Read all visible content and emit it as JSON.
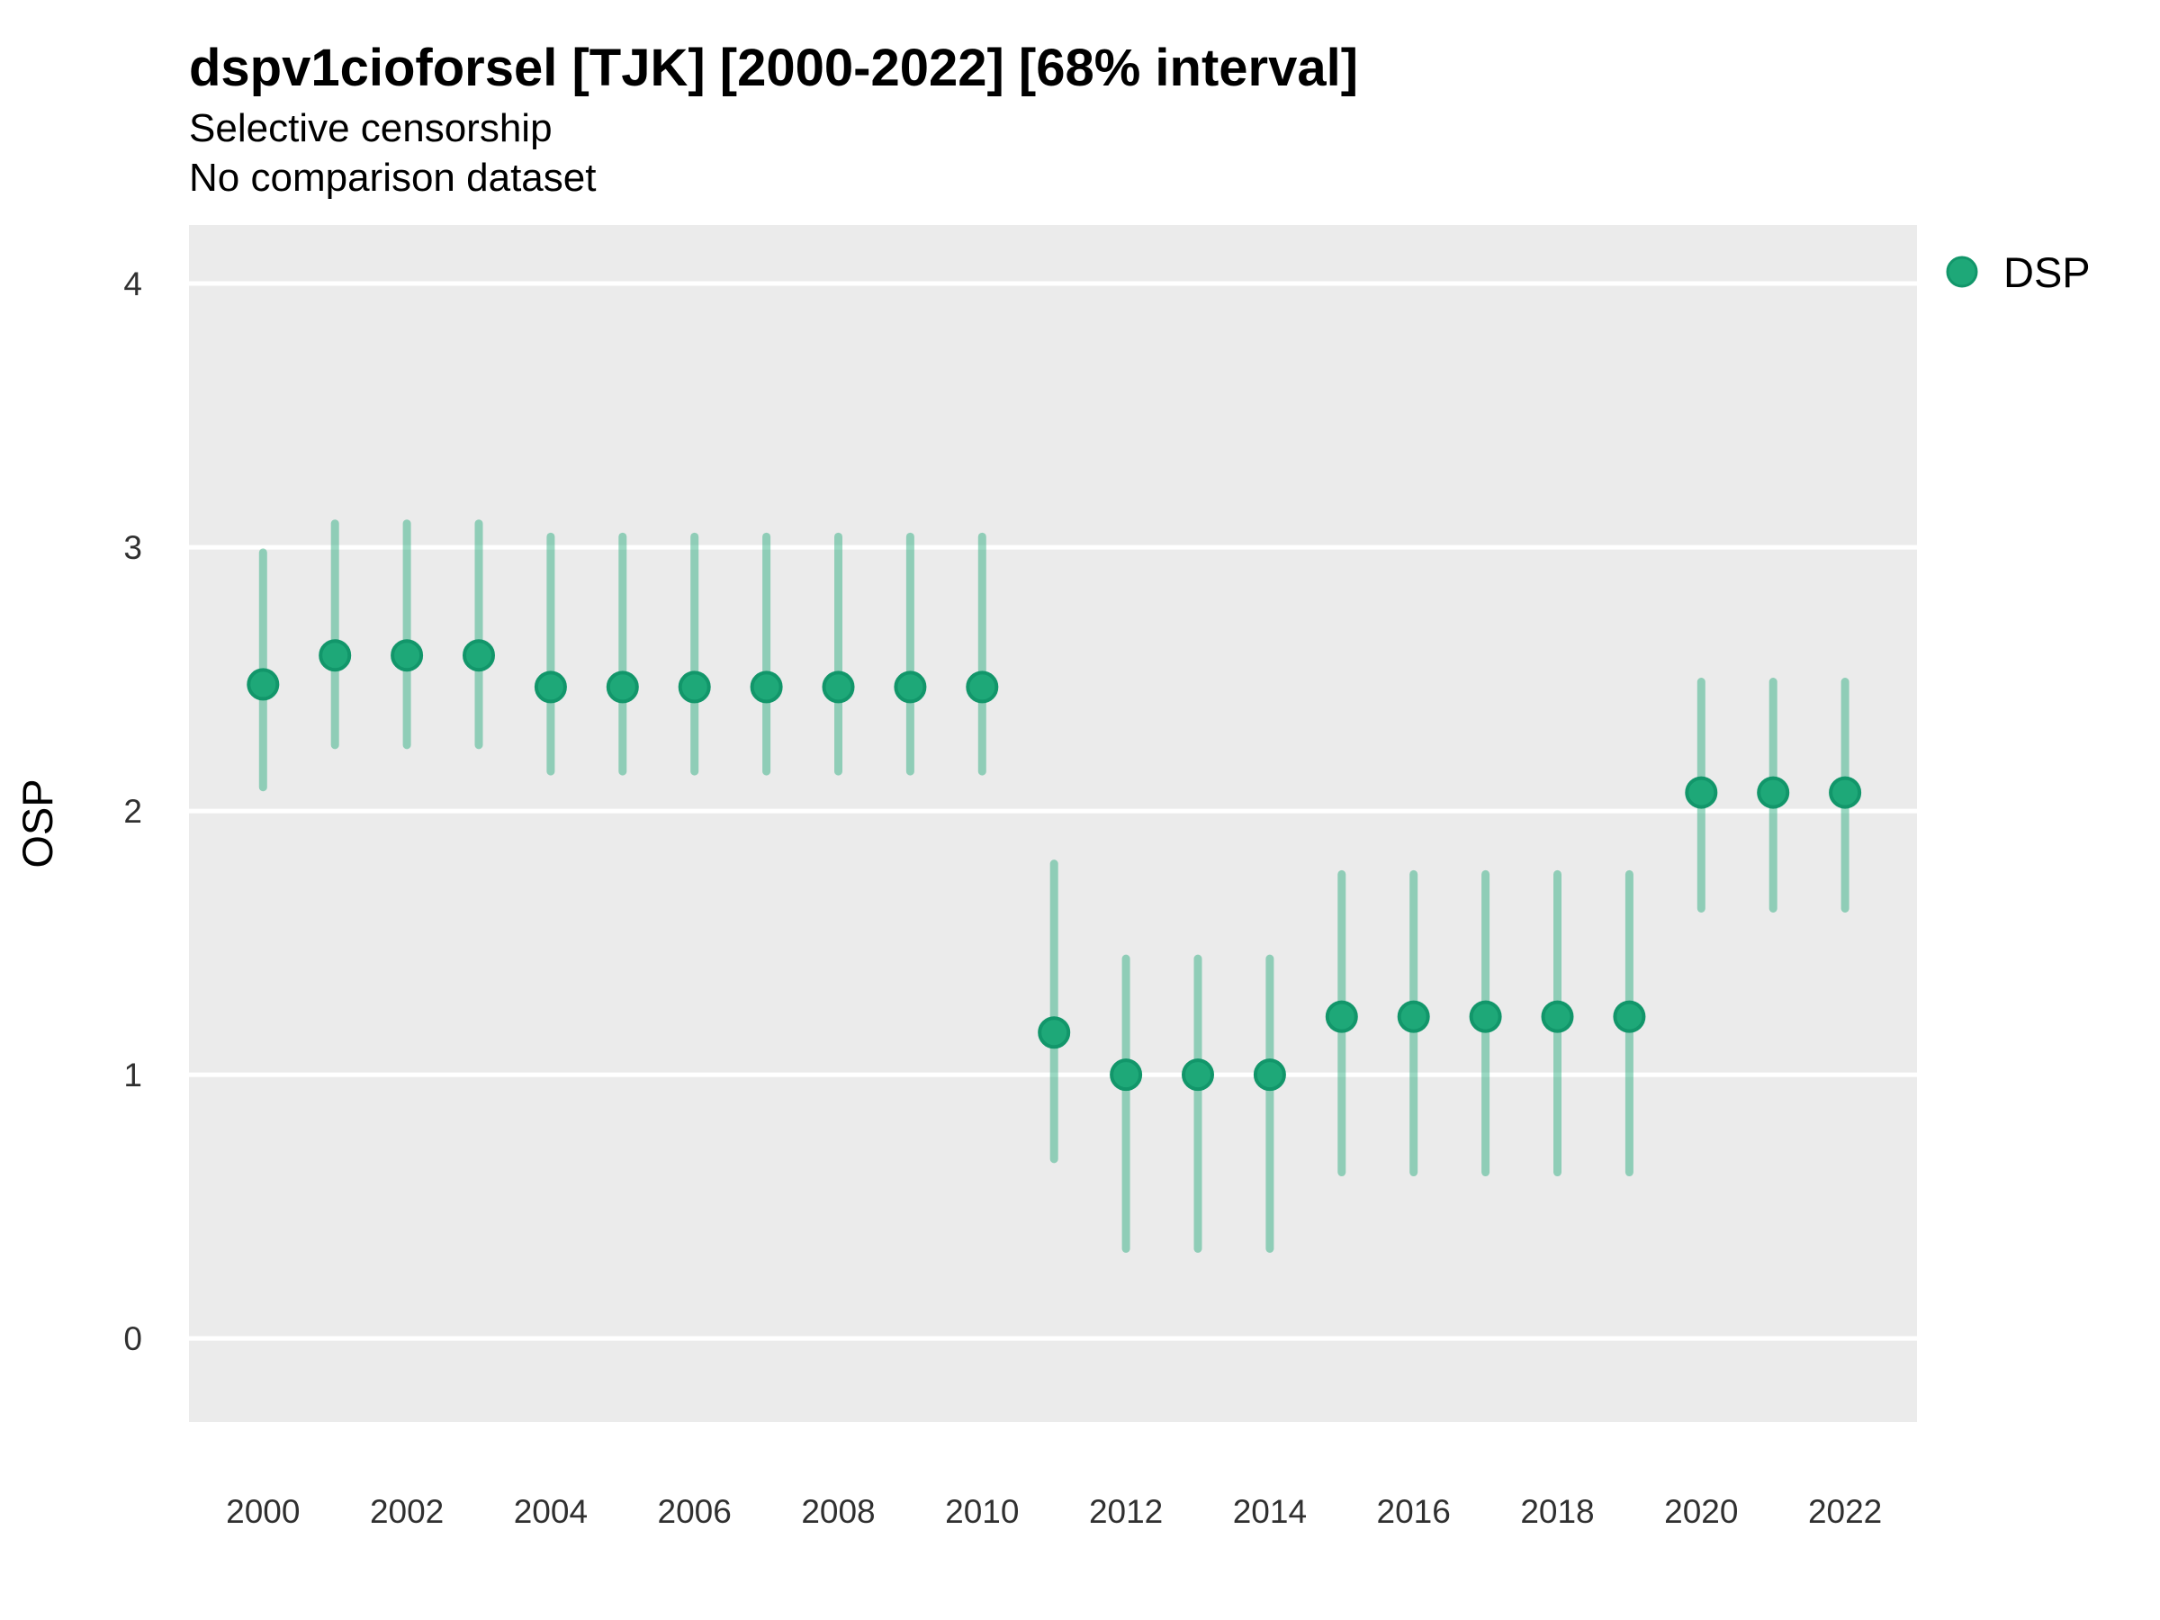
{
  "header": {
    "title": "dspv1cioforsel [TJK] [2000-2022] [68% interval]",
    "subtitle": "Selective censorship",
    "note": "No comparison dataset"
  },
  "legend": {
    "items": [
      {
        "label": "DSP",
        "marker": "circle-icon"
      }
    ]
  },
  "axes": {
    "x": {
      "label": "",
      "tick_years": [
        2000,
        2002,
        2004,
        2006,
        2008,
        2010,
        2012,
        2014,
        2016,
        2018,
        2020,
        2022
      ],
      "range": [
        1998.97,
        2023.0
      ]
    },
    "y": {
      "label": "OSP",
      "ticks": [
        0,
        1,
        2,
        3,
        4
      ],
      "range": [
        -0.317,
        4.222
      ]
    }
  },
  "colors": {
    "point_fill": "#1ea878",
    "point_border": "#12966a",
    "interval_line": "#1ea878",
    "interval_opacity": 0.45,
    "panel_bg": "#ebebeb",
    "gridline": "#ffffff"
  },
  "chart_data": {
    "type": "scatter",
    "title": "dspv1cioforsel [TJK] [2000-2022] [68% interval]",
    "subtitle": "Selective censorship",
    "note": "No comparison dataset",
    "interval_level": "68%",
    "xlabel": "",
    "ylabel": "OSP",
    "xlim": [
      1998.97,
      2023.0
    ],
    "ylim": [
      -0.317,
      4.222
    ],
    "x_ticks": [
      2000,
      2002,
      2004,
      2006,
      2008,
      2010,
      2012,
      2014,
      2016,
      2018,
      2020,
      2022
    ],
    "y_ticks": [
      0,
      1,
      2,
      3,
      4
    ],
    "grid": "horizontal-major-only",
    "legend_position": "right-top",
    "series": [
      {
        "name": "DSP",
        "x": [
          2000,
          2001,
          2002,
          2003,
          2004,
          2005,
          2006,
          2007,
          2008,
          2009,
          2010,
          2011,
          2012,
          2013,
          2014,
          2015,
          2016,
          2017,
          2018,
          2019,
          2020,
          2021,
          2022
        ],
        "y": [
          2.48,
          2.59,
          2.59,
          2.59,
          2.47,
          2.47,
          2.47,
          2.47,
          2.47,
          2.47,
          2.47,
          1.16,
          1.0,
          1.0,
          1.0,
          1.22,
          1.22,
          1.22,
          1.22,
          1.22,
          2.07,
          2.07,
          2.07
        ],
        "y_lo": [
          2.09,
          2.25,
          2.25,
          2.25,
          2.15,
          2.15,
          2.15,
          2.15,
          2.15,
          2.15,
          2.15,
          0.68,
          0.34,
          0.34,
          0.34,
          0.63,
          0.63,
          0.63,
          0.63,
          0.63,
          1.63,
          1.63,
          1.63
        ],
        "y_hi": [
          2.98,
          3.09,
          3.09,
          3.09,
          3.04,
          3.04,
          3.04,
          3.04,
          3.04,
          3.04,
          3.04,
          1.8,
          1.44,
          1.44,
          1.44,
          1.76,
          1.76,
          1.76,
          1.76,
          1.76,
          2.49,
          2.49,
          2.49
        ]
      }
    ]
  }
}
